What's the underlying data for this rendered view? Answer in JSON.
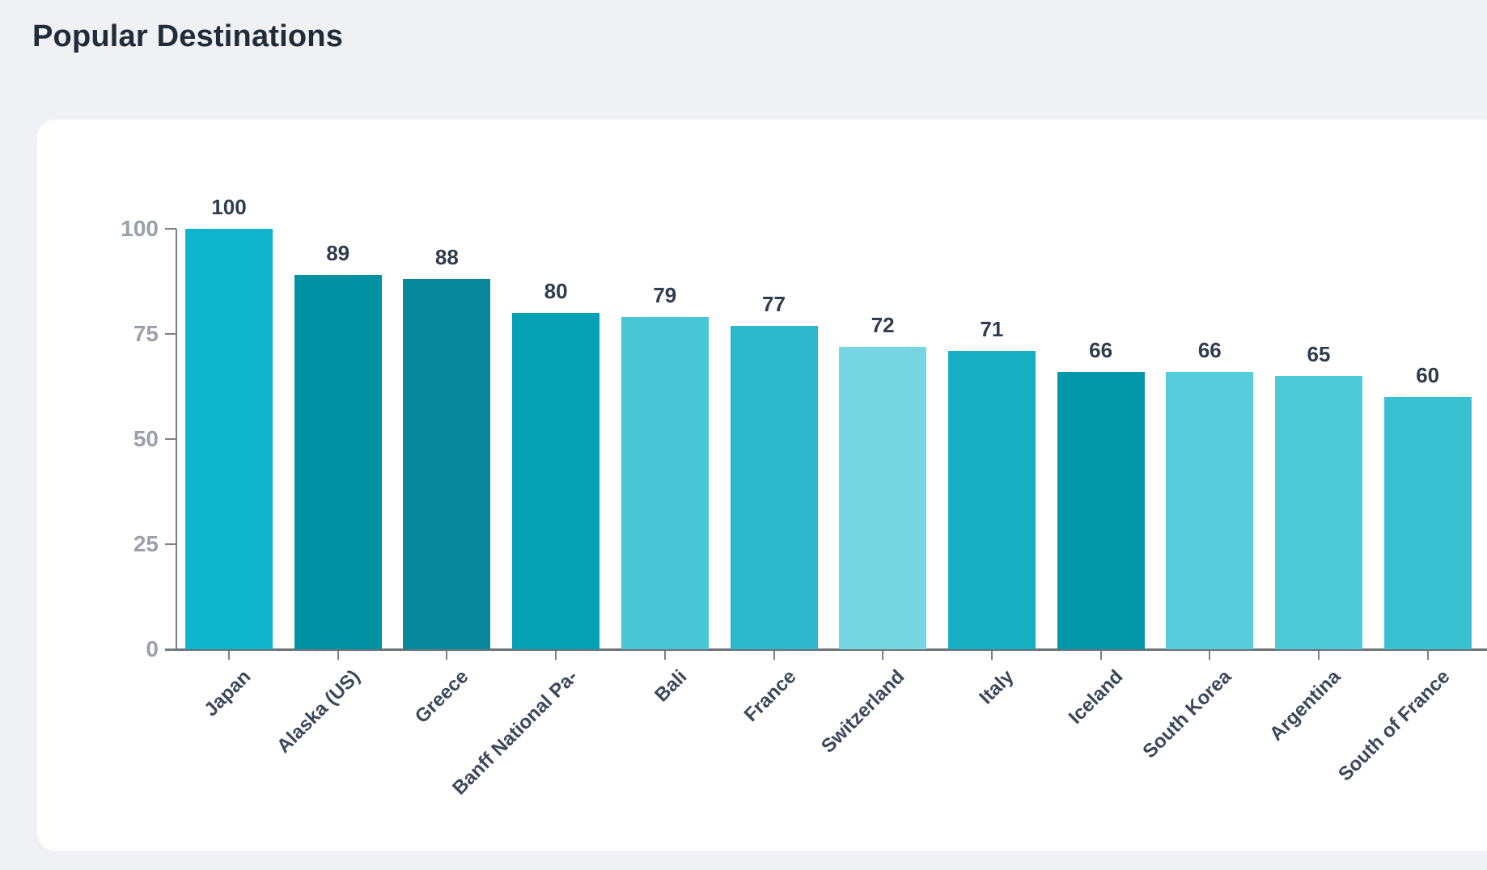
{
  "page": {
    "title": "Popular Destinations"
  },
  "chart_data": {
    "type": "bar",
    "title": "Popular Destinations",
    "categories": [
      "Japan",
      "Alaska (US)",
      "Greece",
      "Banff National Pa-",
      "Bali",
      "France",
      "Switzerland",
      "Italy",
      "Iceland",
      "South Korea",
      "Argentina",
      "South of France"
    ],
    "values": [
      100,
      89,
      88,
      80,
      79,
      77,
      72,
      71,
      66,
      66,
      65,
      60
    ],
    "bar_colors": [
      "#0db4cb",
      "#0092a3",
      "#07889b",
      "#03a1b3",
      "#48c6d6",
      "#2eb8cb",
      "#76d6e2",
      "#16aec3",
      "#0397a9",
      "#58ccda",
      "#4dc9d7",
      "#39c1d1"
    ],
    "xlabel": "",
    "ylabel": "",
    "ylim": [
      0,
      100
    ],
    "yticks": [
      0,
      25,
      50,
      75,
      100
    ],
    "grid": false,
    "legend": "none",
    "data_labels": true,
    "x_label_rotation": -45,
    "colors": {
      "background": "#eff1f4",
      "card": "#ffffff",
      "title_text": "#222b38",
      "axis": "#6e7378",
      "y_tick_text": "#9ba1a9",
      "value_label_text": "#2f3c4d",
      "x_label_text": "#3a4859"
    }
  }
}
